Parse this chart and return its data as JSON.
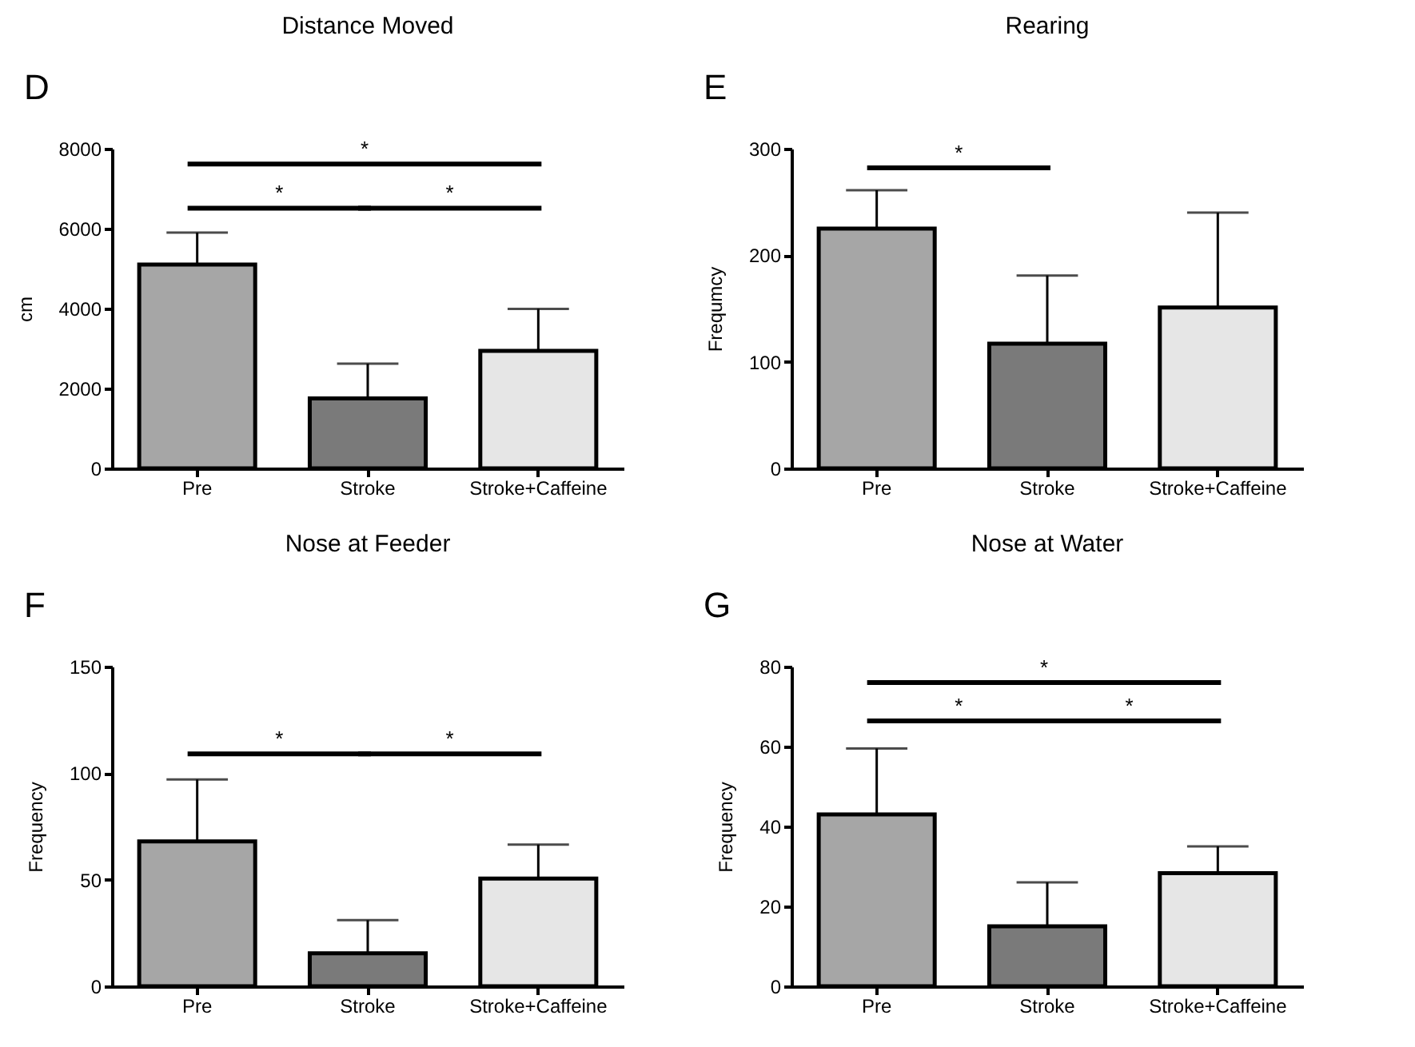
{
  "chart_data": [
    {
      "type": "bar",
      "title": "Distance Moved",
      "ylabel": "cm",
      "categories": [
        "Pre",
        "Stroke",
        "Stroke+Caffeine"
      ],
      "values": [
        5100,
        1750,
        2940
      ],
      "colors": [
        "#a6a6a6",
        "#7a7a7a",
        "#e6e6e6"
      ],
      "errors": [
        [
          5100,
          5900
        ],
        [
          1750,
          2620
        ],
        [
          2940,
          3990
        ]
      ],
      "ylim": [
        0,
        8000
      ],
      "yticks": [
        0,
        2000,
        4000,
        6000,
        8000
      ],
      "annotations": [
        "D",
        "*",
        "*",
        "*"
      ]
    },
    {
      "type": "bar",
      "title": "Rearing",
      "ylabel": "Frequmcy",
      "categories": [
        "Pre",
        "Stroke",
        "Stroke+Caffeine"
      ],
      "values": [
        225,
        117,
        151
      ],
      "colors": [
        "#a6a6a6",
        "#7a7a7a",
        "#e6e6e6"
      ],
      "errors": [
        [
          225,
          261
        ],
        [
          117,
          181
        ],
        [
          151,
          240
        ]
      ],
      "ylim": [
        0,
        300
      ],
      "yticks": [
        0,
        100,
        200,
        300
      ],
      "annotations": [
        "E",
        "*"
      ]
    },
    {
      "type": "bar",
      "title": "Nose at Feeder",
      "ylabel": "Frequency",
      "categories": [
        "Pre",
        "Stroke",
        "Stroke+Caffeine"
      ],
      "values": [
        68,
        15.5,
        50.5
      ],
      "colors": [
        "#a6a6a6",
        "#7a7a7a",
        "#e6e6e6"
      ],
      "errors": [
        [
          68,
          97
        ],
        [
          15.5,
          31
        ],
        [
          50.5,
          66.5
        ]
      ],
      "ylim": [
        0,
        150
      ],
      "yticks": [
        0,
        50,
        100,
        150
      ],
      "annotations": [
        "F",
        "*",
        "*"
      ]
    },
    {
      "type": "bar",
      "title": "Nose at Water",
      "ylabel": "Frequency",
      "categories": [
        "Pre",
        "Stroke",
        "Stroke+Caffeine"
      ],
      "values": [
        43,
        15,
        28.3
      ],
      "colors": [
        "#a6a6a6",
        "#7a7a7a",
        "#e6e6e6"
      ],
      "errors": [
        [
          43,
          59.5
        ],
        [
          15,
          26
        ],
        [
          28.3,
          35
        ]
      ],
      "ylim": [
        0,
        80
      ],
      "yticks": [
        0,
        20,
        40,
        60,
        80
      ],
      "annotations": [
        "G",
        "*",
        "*",
        "*"
      ]
    }
  ]
}
